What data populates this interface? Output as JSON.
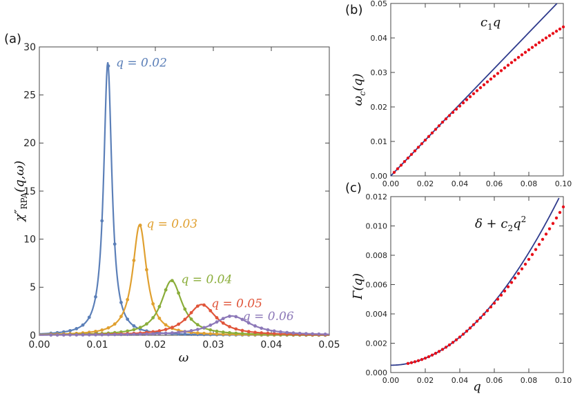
{
  "chart_data": [
    {
      "panel": "(a)",
      "type": "line",
      "xlabel": "ω",
      "ylabel": "χ″_RPA(q,ω)",
      "ylabel_main": "χ″",
      "ylabel_sub": "RPA",
      "ylabel_args": "(q,ω)",
      "xlim": [
        0,
        0.05
      ],
      "ylim": [
        0,
        30
      ],
      "xticks": [
        "0.00",
        "0.01",
        "0.02",
        "0.03",
        "0.04",
        "0.05"
      ],
      "yticks": [
        "0",
        "5",
        "10",
        "15",
        "20",
        "25",
        "30"
      ],
      "series": [
        {
          "name": "q = 0.02",
          "label": "q = 0.02",
          "q": 0.02,
          "color": "#5b7fb8",
          "peak_x": 0.0118,
          "peak_y": 28.4,
          "width": 0.00085
        },
        {
          "name": "q = 0.03",
          "label": "q = 0.03",
          "q": 0.03,
          "color": "#e0a030",
          "peak_x": 0.0173,
          "peak_y": 11.5,
          "width": 0.00145
        },
        {
          "name": "q = 0.04",
          "label": "q = 0.04",
          "q": 0.04,
          "color": "#8aad3a",
          "peak_x": 0.0228,
          "peak_y": 5.7,
          "width": 0.0022
        },
        {
          "name": "q = 0.05",
          "label": "q = 0.05",
          "q": 0.05,
          "color": "#e0553a",
          "peak_x": 0.028,
          "peak_y": 3.2,
          "width": 0.003
        },
        {
          "name": "q = 0.06",
          "label": "q = 0.06",
          "q": 0.06,
          "color": "#8c78b8",
          "peak_x": 0.0332,
          "peak_y": 2.0,
          "width": 0.0039
        }
      ]
    },
    {
      "panel": "(b)",
      "type": "scatter",
      "xlabel": "",
      "ylabel": "ω_c(q)",
      "ylabel_main": "ω",
      "ylabel_sub": "c",
      "ylabel_args": "(q)",
      "xlim": [
        0,
        0.1
      ],
      "ylim": [
        0,
        0.052
      ],
      "xticks": [
        "0.00",
        "0.02",
        "0.04",
        "0.06",
        "0.08",
        "0.10"
      ],
      "yticks": [
        "0.00",
        "0.01",
        "0.02",
        "0.03",
        "0.04",
        "0.05"
      ],
      "fit_label_main": "c",
      "fit_label_sub": "1",
      "fit_label_rest": "q",
      "fit": {
        "name": "c1 q",
        "color": "#2e3a8c",
        "slope": 0.54
      },
      "points": {
        "color": "#e8101a",
        "x_start": 0.002,
        "x_end": 0.1,
        "x_step": 0.002,
        "slope": 0.54,
        "bend": 8.0
      }
    },
    {
      "panel": "(c)",
      "type": "scatter",
      "xlabel": "q",
      "ylabel": "Γ(q)",
      "xlim": [
        0,
        0.1
      ],
      "ylim": [
        0,
        0.012
      ],
      "xticks": [
        "0.00",
        "0.02",
        "0.04",
        "0.06",
        "0.08",
        "0.10"
      ],
      "yticks": [
        "0.000",
        "0.002",
        "0.004",
        "0.006",
        "0.008",
        "0.010",
        "0.012"
      ],
      "fit_label_main": "δ + c",
      "fit_label_sub": "2",
      "fit_label_rest": "q",
      "fit_label_sup": "2",
      "fit": {
        "name": "δ + c2 q^2",
        "color": "#2e3a8c",
        "delta": 0.0005,
        "c2": 1.2
      },
      "points": {
        "color": "#e8101a",
        "x_start": 0.01,
        "x_end": 0.1,
        "x_step": 0.002,
        "delta": 0.0005,
        "c2": 1.2,
        "bend": 10.0
      }
    }
  ]
}
